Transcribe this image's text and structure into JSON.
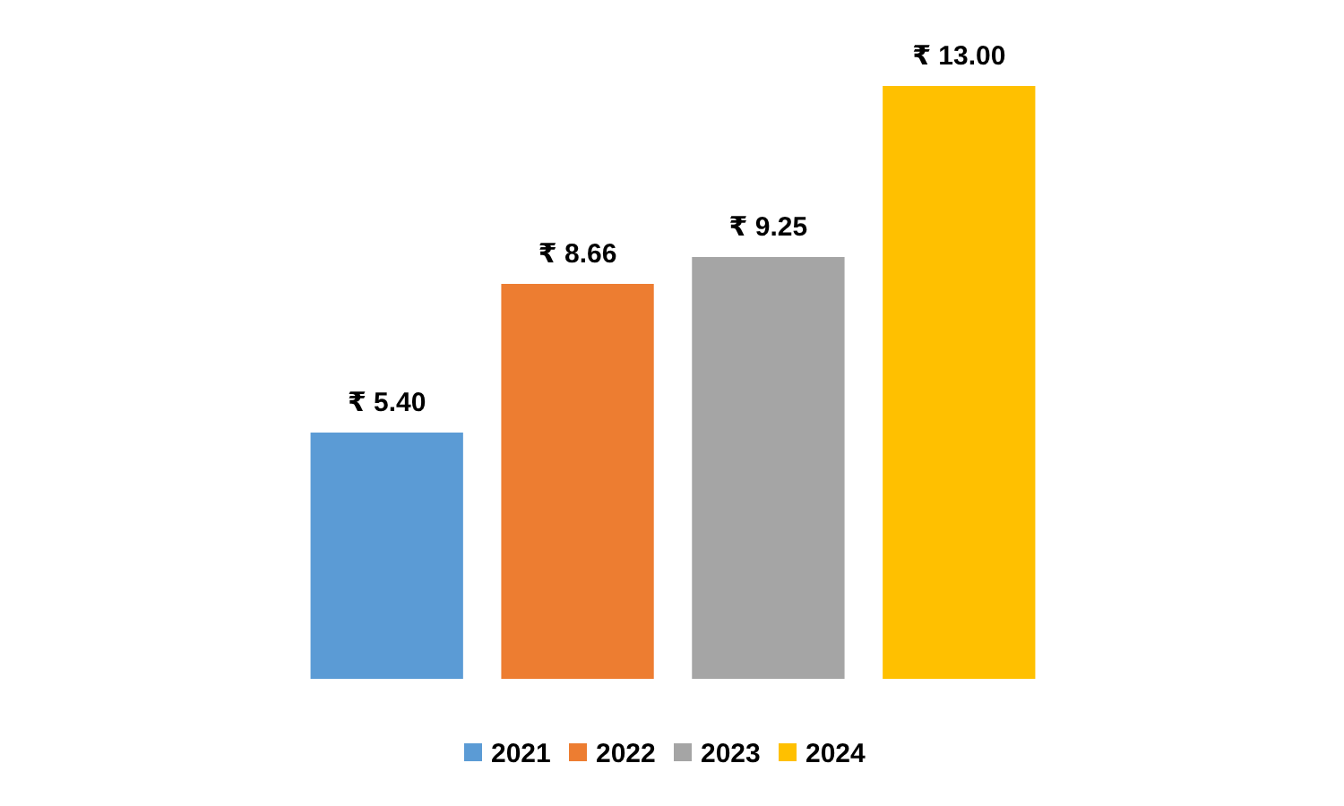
{
  "chart_data": {
    "type": "bar",
    "categories": [
      null
    ],
    "series": [
      {
        "name": "2021",
        "color": "#5b9bd5",
        "values": [
          5.4
        ],
        "value_labels": [
          "₹ 5.40"
        ]
      },
      {
        "name": "2022",
        "color": "#ed7d31",
        "values": [
          8.66
        ],
        "value_labels": [
          "₹ 8.66"
        ]
      },
      {
        "name": "2023",
        "color": "#a5a5a5",
        "values": [
          9.25
        ],
        "value_labels": [
          "₹ 9.25"
        ]
      },
      {
        "name": "2024",
        "color": "#ffc000",
        "values": [
          13.0
        ],
        "value_labels": [
          "₹ 13.00"
        ]
      }
    ],
    "legend": "bottom"
  }
}
